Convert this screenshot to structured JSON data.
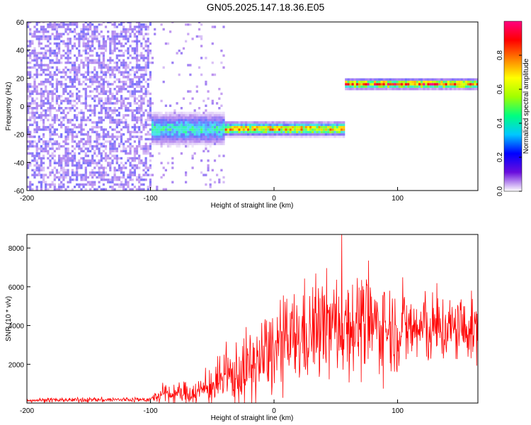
{
  "page_title": "GN05.2025.147.18.36.E05",
  "chart_data": [
    {
      "type": "heatmap",
      "title": "GN05.2025.147.18.36.E05",
      "xlabel": "Height of straight line (km)",
      "ylabel": "Frequency (Hz)",
      "xlim": [
        -200,
        165
      ],
      "ylim": [
        -60,
        60
      ],
      "xticks": [
        -200,
        -100,
        0,
        100
      ],
      "yticks": [
        -60,
        -40,
        -20,
        0,
        20,
        40,
        60
      ],
      "colorbar": {
        "label": "Normalized spectral amplitude",
        "range": [
          0,
          1
        ],
        "ticks": [
          "0.0",
          "0.2",
          "0.4",
          "0.6",
          "0.8"
        ],
        "colormap": [
          "#ffffff",
          "#6a0ddd",
          "#0000ff",
          "#00c8ff",
          "#00ff80",
          "#a0ff00",
          "#ffff00",
          "#ff8000",
          "#ff0000",
          "#ff0080"
        ]
      },
      "features": [
        {
          "x_range": [
            -200,
            -100
          ],
          "freq_range": [
            -60,
            60
          ],
          "amplitude": 0.15
        },
        {
          "x_range": [
            -100,
            -40
          ],
          "freq_center": -17,
          "freq_width": 18,
          "amplitude": 0.45
        },
        {
          "x_range": [
            -40,
            57
          ],
          "freq_center": -17,
          "freq_width": 8,
          "amplitude": 0.8
        },
        {
          "x_range": [
            57,
            165
          ],
          "freq_center": 15,
          "freq_width": 6,
          "amplitude": 0.95
        }
      ],
      "grid": false
    },
    {
      "type": "line",
      "xlabel": "Height of straight line (km)",
      "ylabel": "SNR (10 * v/v)",
      "xlim": [
        -200,
        165
      ],
      "ylim": [
        0,
        8700
      ],
      "xticks": [
        -200,
        -100,
        0,
        100
      ],
      "yticks": [
        2000,
        4000,
        6000,
        8000
      ],
      "series": [
        {
          "color": "#ff0000",
          "envelope": {
            "x": [
              -200,
              -100,
              -90,
              -80,
              -60,
              -40,
              -20,
              0,
              20,
              40,
              60,
              80,
              100,
              120,
              140,
              165
            ],
            "mean": [
              150,
              180,
              450,
              450,
              600,
              1200,
              1800,
              2700,
              3400,
              3900,
              4100,
              4000,
              3800,
              3800,
              3800,
              3800
            ],
            "spread": [
              120,
              150,
              600,
              600,
              800,
              1500,
              2200,
              2500,
              2800,
              3000,
              3000,
              2800,
              2400,
              2200,
              2000,
              1800
            ]
          }
        }
      ],
      "grid": false
    }
  ]
}
